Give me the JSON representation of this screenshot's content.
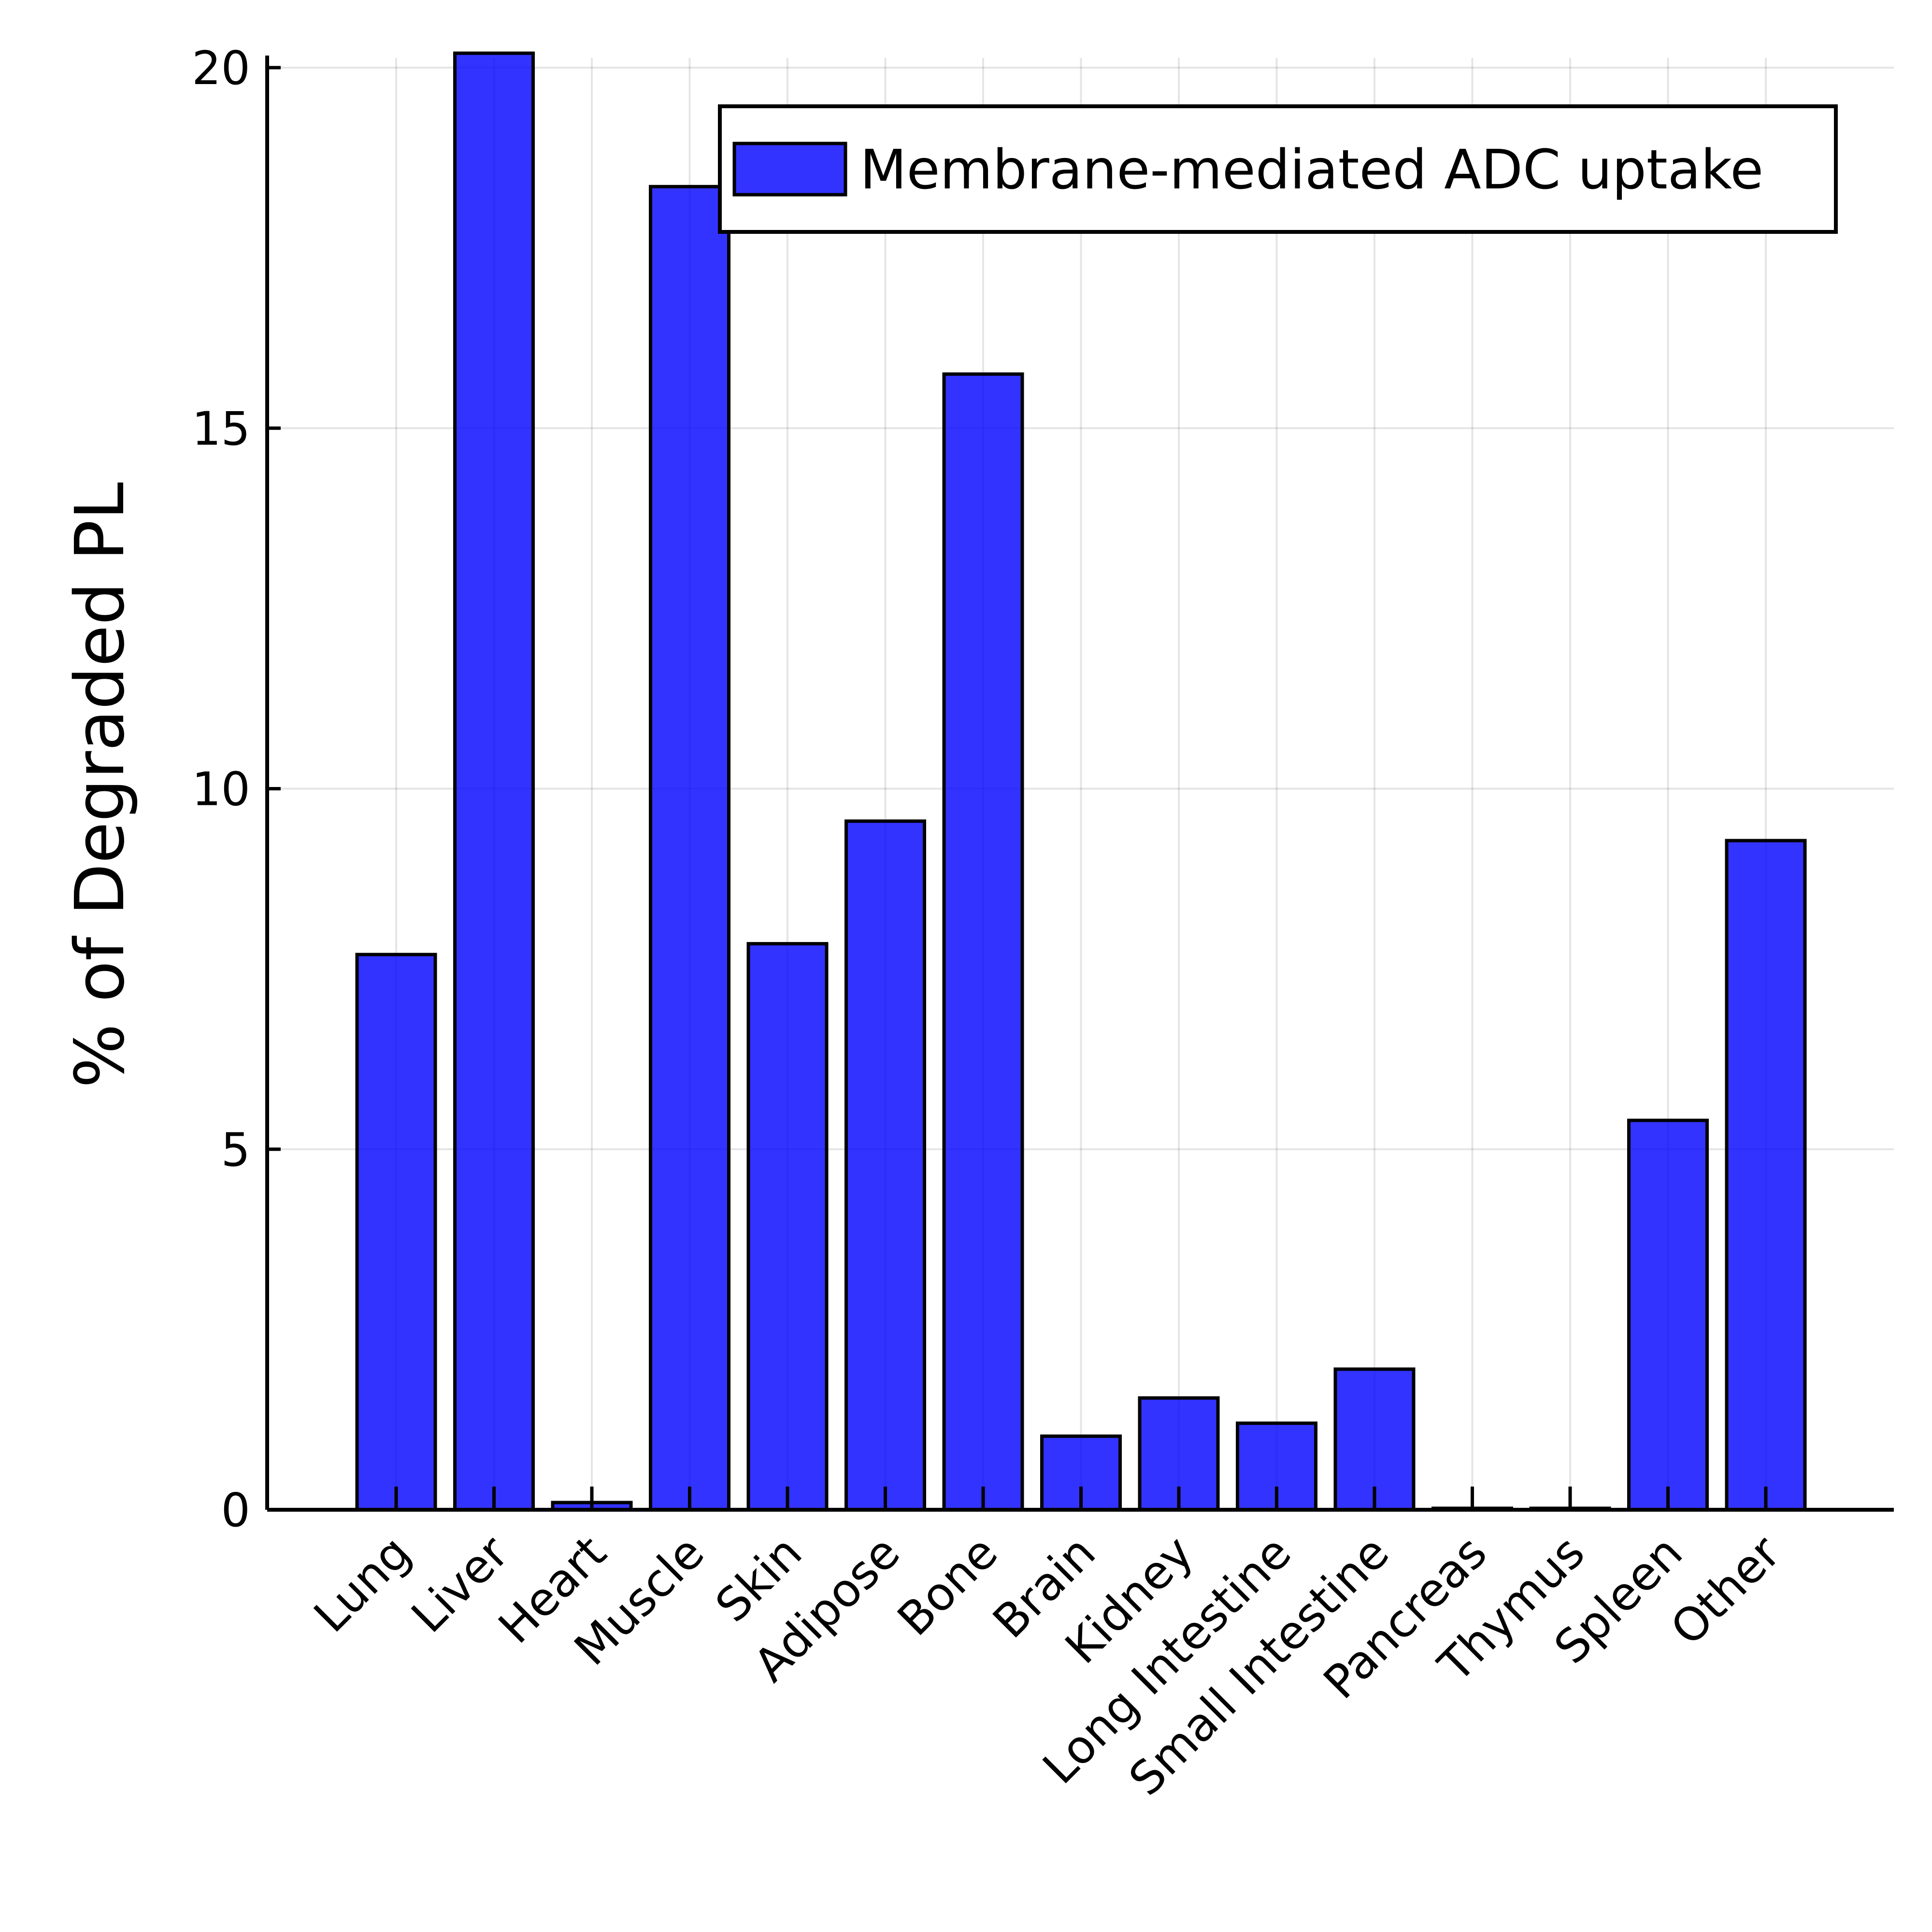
{
  "chart_data": {
    "type": "bar",
    "title": "",
    "xlabel": "",
    "ylabel": "% of Degraded PL",
    "ylim": [
      0,
      20
    ],
    "yticks": [
      0,
      5,
      10,
      15,
      20
    ],
    "grid": true,
    "legend_position": "top-right",
    "categories": [
      "Lung",
      "Liver",
      "Heart",
      "Muscle",
      "Skin",
      "Adipose",
      "Bone",
      "Brain",
      "Kidney",
      "Long Intestine",
      "Small Intestine",
      "Pancreas",
      "Thymus",
      "Spleen",
      "Other"
    ],
    "series": [
      {
        "name": "Membrane-mediated ADC uptake",
        "color": "#0000ff",
        "values": [
          7.7,
          20.2,
          0.1,
          18.35,
          7.85,
          9.55,
          15.75,
          1.02,
          1.55,
          1.2,
          1.95,
          0.02,
          0.02,
          5.4,
          9.28
        ]
      }
    ]
  }
}
